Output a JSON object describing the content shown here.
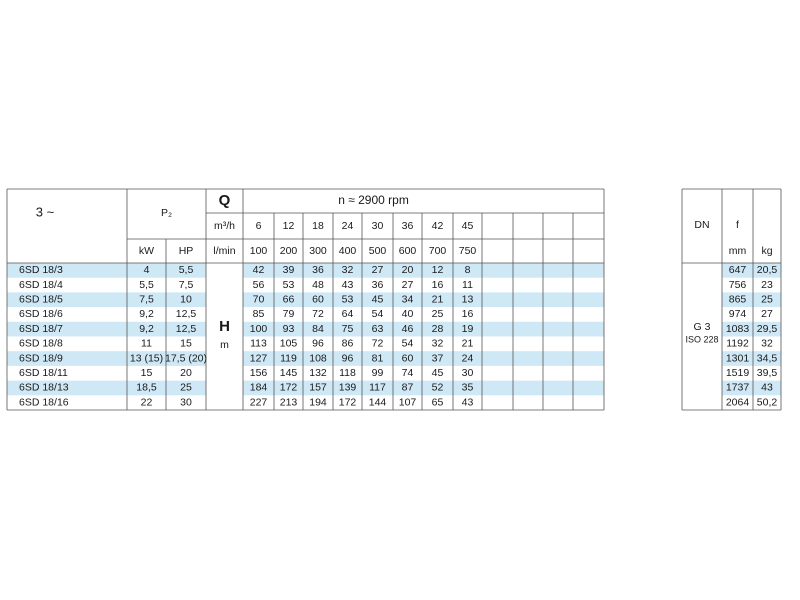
{
  "header": {
    "phase": "3 ~",
    "power": "P₂",
    "power_units": [
      "kW",
      "HP"
    ],
    "flow_symbol": "Q",
    "flow_units": [
      "m³/h",
      "l/min"
    ],
    "speed": "n ≈ 2900 rpm",
    "flow_m3h": [
      6,
      12,
      18,
      24,
      30,
      36,
      42,
      45
    ],
    "flow_lmin": [
      100,
      200,
      300,
      400,
      500,
      600,
      700,
      750
    ],
    "head_symbol": "H",
    "head_unit": "m"
  },
  "rows": [
    {
      "model": "6SD 18/3",
      "kw": 4,
      "hp": "5,5",
      "heads": [
        42,
        39,
        36,
        32,
        27,
        20,
        12,
        8
      ],
      "f_mm": 647,
      "kg": "20,5"
    },
    {
      "model": "6SD 18/4",
      "kw": "5,5",
      "hp": "7,5",
      "heads": [
        56,
        53,
        48,
        43,
        36,
        27,
        16,
        11
      ],
      "f_mm": 756,
      "kg": 23
    },
    {
      "model": "6SD 18/5",
      "kw": "7,5",
      "hp": 10,
      "heads": [
        70,
        66,
        60,
        53,
        45,
        34,
        21,
        13
      ],
      "f_mm": 865,
      "kg": 25
    },
    {
      "model": "6SD 18/6",
      "kw": "9,2",
      "hp": "12,5",
      "heads": [
        85,
        79,
        72,
        64,
        54,
        40,
        25,
        16
      ],
      "f_mm": 974,
      "kg": 27
    },
    {
      "model": "6SD 18/7",
      "kw": "9,2",
      "hp": "12,5",
      "heads": [
        100,
        93,
        84,
        75,
        63,
        46,
        28,
        19
      ],
      "f_mm": 1083,
      "kg": "29,5"
    },
    {
      "model": "6SD 18/8",
      "kw": 11,
      "hp": 15,
      "heads": [
        113,
        105,
        96,
        86,
        72,
        54,
        32,
        21
      ],
      "f_mm": 1192,
      "kg": 32
    },
    {
      "model": "6SD 18/9",
      "kw": "13 (15)",
      "hp": "17,5 (20)",
      "heads": [
        127,
        119,
        108,
        96,
        81,
        60,
        37,
        24
      ],
      "f_mm": 1301,
      "kg": "34,5"
    },
    {
      "model": "6SD 18/11",
      "kw": 15,
      "hp": 20,
      "heads": [
        156,
        145,
        132,
        118,
        99,
        74,
        45,
        30
      ],
      "f_mm": 1519,
      "kg": "39,5"
    },
    {
      "model": "6SD 18/13",
      "kw": "18,5",
      "hp": 25,
      "heads": [
        184,
        172,
        157,
        139,
        117,
        87,
        52,
        35
      ],
      "f_mm": 1737,
      "kg": 43
    },
    {
      "model": "6SD 18/16",
      "kw": 22,
      "hp": 30,
      "heads": [
        227,
        213,
        194,
        172,
        144,
        107,
        65,
        43
      ],
      "f_mm": 2064,
      "kg": "50,2"
    }
  ],
  "dimensions": {
    "dn_label": "DN",
    "f_label": "f",
    "f_unit": "mm",
    "weight_unit": "kg",
    "connection": "G 3",
    "standard": "ISO 228"
  }
}
